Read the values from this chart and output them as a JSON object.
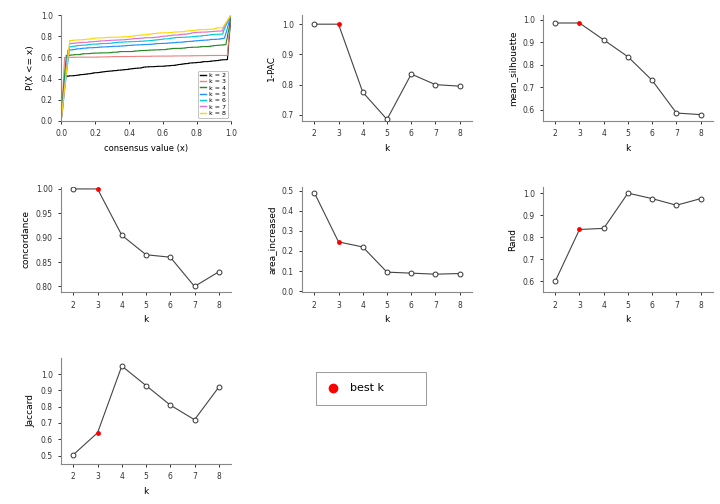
{
  "pac_1": {
    "x": [
      2,
      3,
      4,
      5,
      6,
      7,
      8
    ],
    "y": [
      1.0,
      1.0,
      0.775,
      0.685,
      0.835,
      0.8,
      0.795
    ],
    "best_k": 3,
    "ylabel": "1-PAC",
    "ylim": [
      0.68,
      1.03
    ],
    "yticks": [
      0.7,
      0.8,
      0.9,
      1.0
    ]
  },
  "mean_silhouette": {
    "x": [
      2,
      3,
      4,
      5,
      6,
      7,
      8
    ],
    "y": [
      0.985,
      0.985,
      0.91,
      0.835,
      0.73,
      0.585,
      0.578
    ],
    "best_k": 3,
    "ylabel": "mean_silhouette",
    "ylim": [
      0.55,
      1.02
    ],
    "yticks": [
      0.6,
      0.7,
      0.8,
      0.9,
      1.0
    ]
  },
  "concordance": {
    "x": [
      2,
      3,
      4,
      5,
      6,
      7,
      8
    ],
    "y": [
      1.0,
      1.0,
      0.905,
      0.865,
      0.86,
      0.8,
      0.83
    ],
    "best_k": 3,
    "ylabel": "concordance",
    "ylim": [
      0.788,
      1.005
    ],
    "yticks": [
      0.8,
      0.85,
      0.9,
      0.95,
      1.0
    ]
  },
  "area_increased": {
    "x": [
      2,
      3,
      4,
      5,
      6,
      7,
      8
    ],
    "y": [
      0.49,
      0.245,
      0.22,
      0.095,
      0.09,
      0.085,
      0.088
    ],
    "best_k": 3,
    "ylabel": "area_increased",
    "ylim": [
      -0.005,
      0.52
    ],
    "yticks": [
      0.0,
      0.1,
      0.2,
      0.3,
      0.4,
      0.5
    ]
  },
  "rand": {
    "x": [
      2,
      3,
      4,
      5,
      6,
      7,
      8
    ],
    "y": [
      0.6,
      0.835,
      0.84,
      1.0,
      0.975,
      0.945,
      0.975
    ],
    "best_k": 3,
    "ylabel": "Rand",
    "ylim": [
      0.55,
      1.03
    ],
    "yticks": [
      0.6,
      0.7,
      0.8,
      0.9,
      1.0
    ]
  },
  "jaccard": {
    "x": [
      2,
      3,
      4,
      5,
      6,
      7,
      8
    ],
    "y": [
      0.505,
      0.64,
      1.05,
      0.93,
      0.81,
      0.72,
      0.92
    ],
    "best_k": 3,
    "ylabel": "Jaccard",
    "ylim": [
      0.45,
      1.1
    ],
    "yticks": [
      0.5,
      0.6,
      0.7,
      0.8,
      0.9,
      1.0
    ]
  },
  "colors_k": {
    "2": "#000000",
    "3": "#F08080",
    "4": "#228B22",
    "5": "#1E90FF",
    "6": "#00CED1",
    "7": "#DA70D6",
    "8": "#FFD700"
  },
  "best_k_color": "#FF0000",
  "open_circle_fc": "white",
  "line_color": "#444444",
  "marker_ec": "#333333",
  "bg_color": "white",
  "ecdf_xlim": [
    0.0,
    1.0
  ],
  "ecdf_ylim": [
    0.0,
    1.0
  ],
  "ecdf_xticks": [
    0.0,
    0.2,
    0.4,
    0.6,
    0.8,
    1.0
  ],
  "ecdf_yticks": [
    0.0,
    0.2,
    0.4,
    0.6,
    0.8,
    1.0
  ]
}
